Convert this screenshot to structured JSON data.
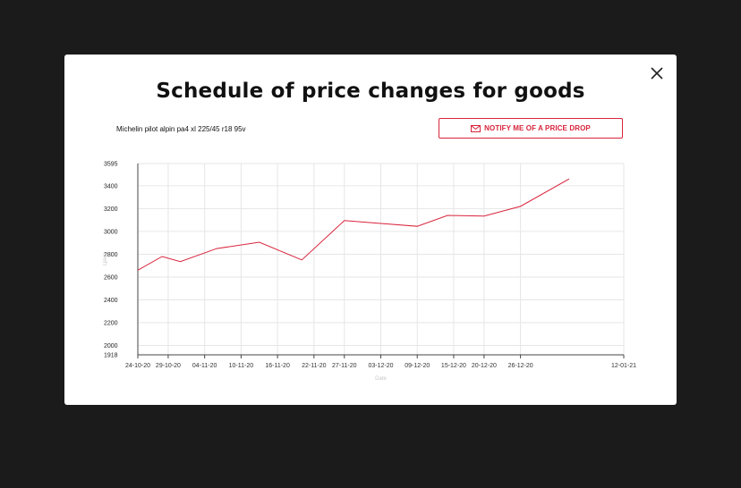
{
  "modal": {
    "title": "Schedule of price changes for goods",
    "product_name": "Michelin pilot alpin pa4 xl 225/45 r18 95v",
    "notify_label": "NOTIFY ME OF A PRICE DROP",
    "close_icon": "close-icon",
    "notify_icon": "envelope-icon",
    "accent_color": "#d8243c"
  },
  "chart_data": {
    "type": "line",
    "xlabel": "Date",
    "ylabel": "Цена",
    "ylim": [
      1918,
      3595
    ],
    "yticks": [
      1918,
      2000,
      2200,
      2400,
      2600,
      2800,
      3000,
      3200,
      3400,
      3595
    ],
    "xticks": [
      "24-10-20",
      "29-10-20",
      "04-11-20",
      "10-11-20",
      "16-11-20",
      "22-11-20",
      "27-11-20",
      "03-12-20",
      "09-12-20",
      "15-12-20",
      "20-12-20",
      "26-12-20",
      "12-01-21"
    ],
    "grid": true,
    "series": [
      {
        "color": "#d8243c",
        "x": [
          "24-10-20",
          "28-10-20",
          "31-10-20",
          "06-11-20",
          "13-11-20",
          "20-11-20",
          "27-11-20",
          "03-12-20",
          "09-12-20",
          "14-12-20",
          "20-12-20",
          "26-12-20",
          "03-01-21"
        ],
        "values": [
          2660,
          2780,
          2735,
          2850,
          2905,
          2750,
          3095,
          3070,
          3045,
          3140,
          3135,
          3220,
          3460
        ]
      }
    ]
  }
}
